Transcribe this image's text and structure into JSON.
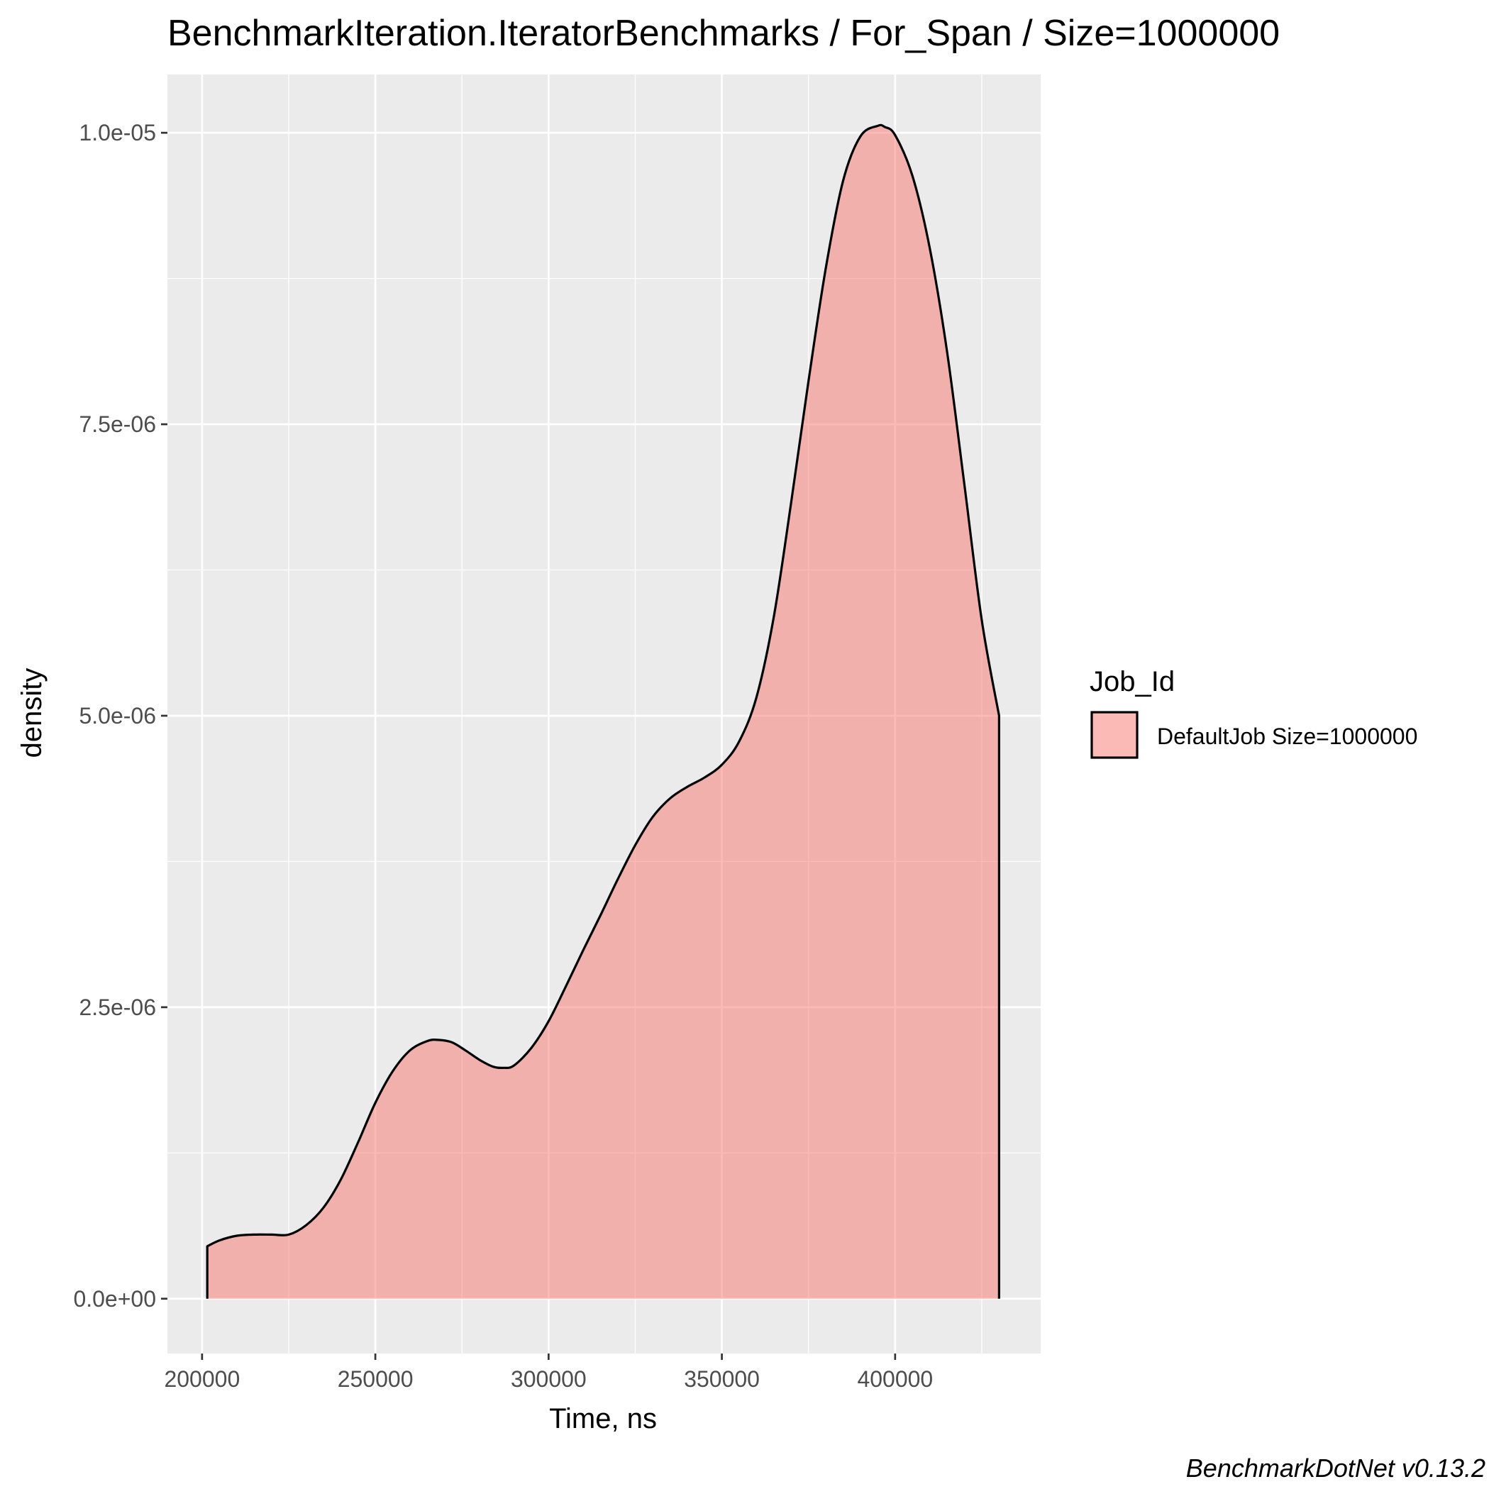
{
  "chart_data": {
    "type": "area",
    "title": "BenchmarkIteration.IteratorBenchmarks / For_Span / Size=1000000",
    "xlabel": "Time, ns",
    "ylabel": "density",
    "xlim": [
      190000,
      442000
    ],
    "ylim": [
      -4.7e-07,
      1.05e-05
    ],
    "x_ticks": [
      {
        "value": 200000,
        "label": "200000"
      },
      {
        "value": 250000,
        "label": "250000"
      },
      {
        "value": 300000,
        "label": "300000"
      },
      {
        "value": 350000,
        "label": "350000"
      },
      {
        "value": 400000,
        "label": "400000"
      }
    ],
    "y_ticks": [
      {
        "value": 0,
        "label": "0.0e+00"
      },
      {
        "value": 2.5e-06,
        "label": "2.5e-06"
      },
      {
        "value": 5e-06,
        "label": "5.0e-06"
      },
      {
        "value": 7.5e-06,
        "label": "7.5e-06"
      },
      {
        "value": 1e-05,
        "label": "1.0e-05"
      }
    ],
    "grid": true,
    "legend": {
      "title": "Job_Id",
      "position": "right"
    },
    "caption": "BenchmarkDotNet v0.13.2",
    "series": [
      {
        "name": "DefaultJob Size=1000000",
        "fill": "#F8766D",
        "x": [
          201500,
          205000,
          210000,
          215000,
          220000,
          225000,
          230000,
          235000,
          240000,
          245000,
          250000,
          255000,
          260000,
          265000,
          268000,
          272000,
          276000,
          280000,
          284000,
          287000,
          290000,
          295000,
          300000,
          305000,
          310000,
          315000,
          320000,
          325000,
          330000,
          335000,
          340000,
          345000,
          350000,
          355000,
          360000,
          365000,
          370000,
          375000,
          380000,
          385000,
          390000,
          395000,
          397000,
          400000,
          405000,
          410000,
          415000,
          420000,
          425000,
          430000
        ],
        "y": [
          4.5e-07,
          5e-07,
          5.4e-07,
          5.5e-07,
          5.5e-07,
          5.5e-07,
          6.3e-07,
          7.8e-07,
          1.02e-06,
          1.34e-06,
          1.68e-06,
          1.95e-06,
          2.13e-06,
          2.21e-06,
          2.22e-06,
          2.2e-06,
          2.13e-06,
          2.05e-06,
          1.99e-06,
          1.98e-06,
          2e-06,
          2.15e-06,
          2.38e-06,
          2.68e-06,
          2.99e-06,
          3.29e-06,
          3.6e-06,
          3.89e-06,
          4.13e-06,
          4.29e-06,
          4.39e-06,
          4.47e-06,
          4.58e-06,
          4.78e-06,
          5.16e-06,
          5.85e-06,
          6.83e-06,
          7.87e-06,
          8.84e-06,
          9.59e-06,
          9.97e-06,
          1.006e-05,
          1.005e-05,
          9.98e-06,
          9.63e-06,
          9.01e-06,
          8.12e-06,
          6.98e-06,
          5.82e-06,
          5e-06
        ]
      }
    ]
  }
}
